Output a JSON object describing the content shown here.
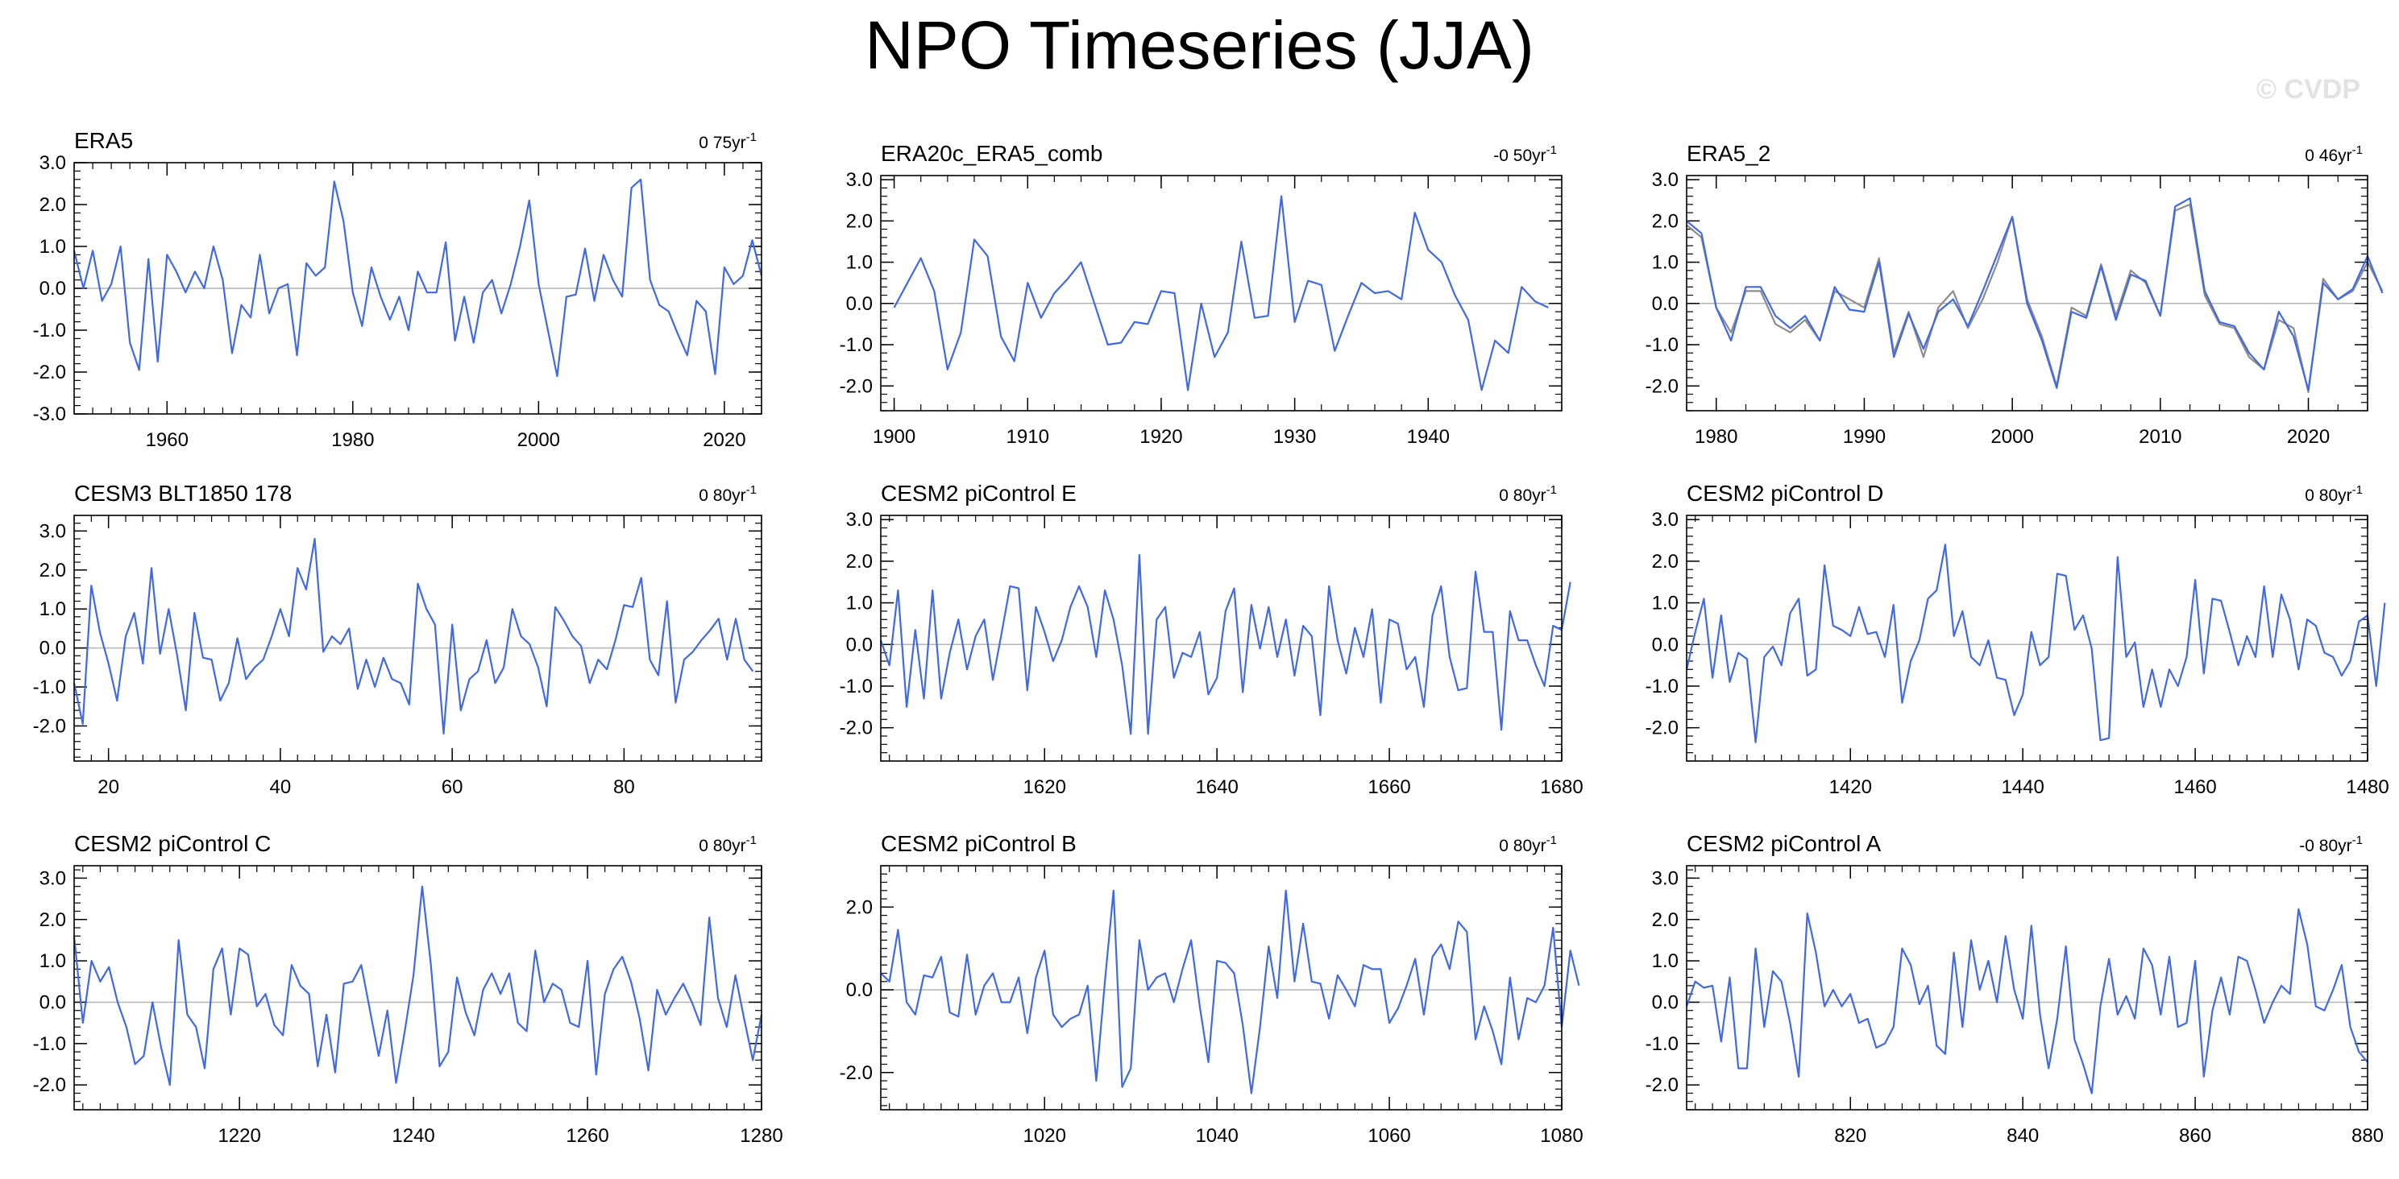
{
  "title": "NPO Timeseries (JJA)",
  "watermark": "© CVDP",
  "colors": {
    "primary": "#4169e1",
    "secondary": "#8c8c8c",
    "zero_line": "#b4b4b4",
    "axis": "#000000"
  },
  "chart_data": [
    {
      "type": "line",
      "title": "ERA5",
      "trend": "0 75yr",
      "xlim": [
        1950,
        2024
      ],
      "ylim": [
        -3,
        3
      ],
      "xticks": [
        1960,
        1980,
        2000,
        2020
      ],
      "yticks": [
        -3,
        -2,
        -1,
        0,
        1,
        2,
        3
      ],
      "x_start": 1950,
      "series": [
        {
          "values": [
            0.9,
            0.0,
            0.9,
            -0.3,
            0.1,
            1.0,
            -1.3,
            -1.95,
            0.7,
            -1.75,
            0.8,
            0.4,
            -0.1,
            0.4,
            0.0,
            1.0,
            0.2,
            -1.55,
            -0.4,
            -0.7,
            0.8,
            -0.6,
            0.0,
            0.1,
            -1.6,
            0.6,
            0.3,
            0.5,
            2.55,
            1.6,
            -0.1,
            -0.9,
            0.5,
            -0.2,
            -0.75,
            -0.2,
            -1.0,
            0.4,
            -0.1,
            -0.1,
            1.1,
            -1.25,
            -0.2,
            -1.3,
            -0.1,
            0.2,
            -0.6,
            0.1,
            1.0,
            2.1,
            0.1,
            -1.0,
            -2.1,
            -0.2,
            -0.15,
            0.95,
            -0.3,
            0.8,
            0.2,
            -0.2,
            2.4,
            2.6,
            0.2,
            -0.4,
            -0.55,
            -1.1,
            -1.6,
            -0.3,
            -0.55,
            -2.05,
            0.5,
            0.1,
            0.3,
            1.15,
            0.3
          ]
        }
      ]
    },
    {
      "type": "line",
      "title": "ERA20c_ERA5_comb",
      "trend": "-0 50yr",
      "xlim": [
        1899,
        1950
      ],
      "ylim": [
        -2.6,
        3.1
      ],
      "xticks": [
        1900,
        1910,
        1920,
        1930,
        1940
      ],
      "yticks": [
        -2,
        -1,
        0,
        1,
        2,
        3
      ],
      "x_start": 1900,
      "series": [
        {
          "values": [
            -0.1,
            0.5,
            1.1,
            0.3,
            -1.6,
            -0.7,
            1.55,
            1.15,
            -0.8,
            -1.4,
            0.5,
            -0.35,
            0.25,
            0.6,
            1.0,
            0.0,
            -1.0,
            -0.95,
            -0.45,
            -0.5,
            0.3,
            0.25,
            -2.1,
            0.0,
            -1.3,
            -0.7,
            1.5,
            -0.35,
            -0.3,
            2.6,
            -0.45,
            0.55,
            0.45,
            -1.15,
            -0.3,
            0.5,
            0.25,
            0.3,
            0.1,
            2.2,
            1.3,
            1.0,
            0.2,
            -0.4,
            -2.1,
            -0.9,
            -1.2,
            0.4,
            0.05,
            -0.1
          ]
        }
      ]
    },
    {
      "type": "line",
      "title": "ERA5_2",
      "trend": "0 46yr",
      "xlim": [
        1978,
        2024
      ],
      "ylim": [
        -2.6,
        3.1
      ],
      "xticks": [
        1980,
        1990,
        2000,
        2010,
        2020
      ],
      "yticks": [
        -2,
        -1,
        0,
        1,
        2,
        3
      ],
      "x_start": 1978,
      "series": [
        {
          "values": [
            2.0,
            1.7,
            -0.1,
            -0.9,
            0.4,
            0.4,
            -0.3,
            -0.6,
            -0.3,
            -0.9,
            0.4,
            -0.15,
            -0.2,
            1.0,
            -1.3,
            -0.25,
            -1.1,
            -0.2,
            0.1,
            -0.55,
            0.3,
            1.2,
            2.1,
            0.0,
            -0.9,
            -2.05,
            -0.2,
            -0.35,
            0.9,
            -0.4,
            0.7,
            0.55,
            -0.3,
            2.35,
            2.55,
            0.3,
            -0.45,
            -0.55,
            -1.2,
            -1.6,
            -0.2,
            -0.8,
            -2.1,
            0.5,
            0.1,
            0.35,
            1.15,
            0.25
          ]
        },
        {
          "values": [
            1.9,
            1.6,
            -0.1,
            -0.7,
            0.3,
            0.3,
            -0.5,
            -0.7,
            -0.4,
            -0.9,
            0.3,
            0.1,
            -0.1,
            1.1,
            -1.2,
            -0.2,
            -1.3,
            -0.1,
            0.3,
            -0.6,
            0.1,
            1.0,
            2.1,
            0.1,
            -0.8,
            -2.0,
            -0.1,
            -0.3,
            0.95,
            -0.3,
            0.8,
            0.5,
            -0.3,
            2.25,
            2.4,
            0.2,
            -0.5,
            -0.6,
            -1.3,
            -1.6,
            -0.4,
            -0.6,
            -2.15,
            0.6,
            0.1,
            0.3,
            1.0,
            0.3
          ]
        }
      ]
    },
    {
      "type": "line",
      "title": "CESM3 BLT1850 178",
      "trend": "0 80yr",
      "xlim": [
        16,
        96
      ],
      "ylim": [
        -2.9,
        3.4
      ],
      "xticks": [
        20,
        40,
        60,
        80
      ],
      "yticks": [
        -2,
        -1,
        0,
        1,
        2,
        3
      ],
      "x_start": 16,
      "series": [
        {
          "values": [
            -0.9,
            -1.95,
            1.6,
            0.4,
            -0.4,
            -1.35,
            0.3,
            0.9,
            -0.4,
            2.05,
            -0.15,
            1.0,
            -0.2,
            -1.6,
            0.9,
            -0.25,
            -0.3,
            -1.35,
            -0.9,
            0.25,
            -0.8,
            -0.5,
            -0.3,
            0.3,
            1.0,
            0.3,
            2.05,
            1.5,
            2.8,
            -0.1,
            0.3,
            0.1,
            0.5,
            -1.05,
            -0.3,
            -1.0,
            -0.25,
            -0.8,
            -0.9,
            -1.45,
            1.65,
            1.0,
            0.6,
            -2.2,
            0.6,
            -1.6,
            -0.8,
            -0.6,
            0.2,
            -0.9,
            -0.5,
            1.0,
            0.3,
            0.1,
            -0.5,
            -1.5,
            1.05,
            0.7,
            0.3,
            0.05,
            -0.9,
            -0.3,
            -0.55,
            0.2,
            1.1,
            1.05,
            1.8,
            -0.3,
            -0.7,
            1.2,
            -1.4,
            -0.3,
            -0.1,
            0.2,
            0.45,
            0.75,
            -0.3,
            0.75,
            -0.3,
            -0.6
          ]
        }
      ]
    },
    {
      "type": "line",
      "title": "CESM2 piControl E",
      "trend": "0 80yr",
      "xlim": [
        1601,
        1680
      ],
      "ylim": [
        -2.8,
        3.1
      ],
      "xticks": [
        1620,
        1640,
        1660,
        1680
      ],
      "yticks": [
        -2,
        -1,
        0,
        1,
        2,
        3
      ],
      "x_start": 1601,
      "series": [
        {
          "values": [
            0.1,
            -0.5,
            1.3,
            -1.5,
            0.35,
            -1.3,
            1.3,
            -1.3,
            -0.2,
            0.6,
            -0.6,
            0.2,
            0.6,
            -0.85,
            0.25,
            1.4,
            1.35,
            -1.1,
            0.9,
            0.3,
            -0.4,
            0.1,
            0.9,
            1.4,
            0.9,
            -0.3,
            1.3,
            0.6,
            -0.5,
            -2.15,
            2.15,
            -2.15,
            0.6,
            0.9,
            -0.8,
            -0.2,
            -0.3,
            0.3,
            -1.2,
            -0.8,
            0.8,
            1.35,
            -1.15,
            0.95,
            -0.1,
            0.9,
            -0.3,
            0.6,
            -0.75,
            0.45,
            0.2,
            -1.7,
            1.4,
            0.1,
            -0.7,
            0.4,
            -0.3,
            0.85,
            -1.4,
            0.6,
            0.5,
            -0.6,
            -0.3,
            -1.5,
            0.7,
            1.4,
            -0.3,
            -1.1,
            -1.05,
            1.75,
            0.3,
            0.3,
            -2.05,
            0.8,
            0.1,
            0.1,
            -0.5,
            -1.0,
            0.45,
            0.35,
            1.5
          ]
        }
      ]
    },
    {
      "type": "line",
      "title": "CESM2 piControl D",
      "trend": "0 80yr",
      "xlim": [
        1401,
        1480
      ],
      "ylim": [
        -2.8,
        3.1
      ],
      "xticks": [
        1420,
        1440,
        1460,
        1480
      ],
      "yticks": [
        -2,
        -1,
        0,
        1,
        2,
        3
      ],
      "x_start": 1401,
      "series": [
        {
          "values": [
            -0.6,
            0.3,
            1.1,
            -0.8,
            0.7,
            -0.9,
            -0.2,
            -0.35,
            -2.35,
            -0.3,
            -0.05,
            -0.5,
            0.75,
            1.1,
            -0.75,
            -0.6,
            1.9,
            0.45,
            0.35,
            0.2,
            0.9,
            0.25,
            0.3,
            -0.3,
            0.95,
            -1.4,
            -0.4,
            0.1,
            1.1,
            1.3,
            2.4,
            0.2,
            0.8,
            -0.3,
            -0.5,
            0.1,
            -0.8,
            -0.85,
            -1.7,
            -1.2,
            0.3,
            -0.5,
            -0.3,
            1.7,
            1.65,
            0.35,
            0.7,
            -0.1,
            -2.3,
            -2.25,
            2.1,
            -0.3,
            0.05,
            -1.5,
            -0.6,
            -1.5,
            -0.6,
            -1.0,
            -0.3,
            1.55,
            -0.7,
            1.1,
            1.05,
            0.3,
            -0.5,
            0.2,
            -0.3,
            1.4,
            -0.3,
            1.2,
            0.6,
            -0.6,
            0.6,
            0.45,
            -0.2,
            -0.3,
            -0.75,
            -0.4,
            0.55,
            0.7,
            -1.0,
            1.0
          ]
        }
      ]
    },
    {
      "type": "line",
      "title": "CESM2 piControl C",
      "trend": "0 80yr",
      "xlim": [
        1201,
        1280
      ],
      "ylim": [
        -2.6,
        3.3
      ],
      "xticks": [
        1220,
        1240,
        1260,
        1280
      ],
      "yticks": [
        -2,
        -1,
        0,
        1,
        2,
        3
      ],
      "x_start": 1201,
      "series": [
        {
          "values": [
            1.6,
            -0.5,
            1.0,
            0.5,
            0.85,
            0.0,
            -0.6,
            -1.5,
            -1.3,
            0.0,
            -1.1,
            -2.0,
            1.5,
            -0.3,
            -0.6,
            -1.6,
            0.8,
            1.3,
            -0.3,
            1.3,
            1.15,
            -0.1,
            0.2,
            -0.55,
            -0.8,
            0.9,
            0.4,
            0.2,
            -1.55,
            -0.3,
            -1.7,
            0.45,
            0.5,
            0.9,
            -0.2,
            -1.3,
            -0.2,
            -1.95,
            -0.7,
            0.65,
            2.8,
            0.9,
            -1.55,
            -1.2,
            0.6,
            -0.25,
            -0.8,
            0.3,
            0.7,
            0.2,
            0.7,
            -0.5,
            -0.7,
            1.25,
            0.0,
            0.45,
            0.3,
            -0.5,
            -0.6,
            1.0,
            -1.75,
            0.2,
            0.8,
            1.1,
            0.5,
            -0.4,
            -1.65,
            0.3,
            -0.3,
            0.1,
            0.45,
            0.0,
            -0.55,
            2.05,
            0.1,
            -0.6,
            0.65,
            -0.4,
            -1.4,
            -0.3
          ]
        }
      ]
    },
    {
      "type": "line",
      "title": "CESM2 piControl B",
      "trend": "0 80yr",
      "xlim": [
        1001,
        1080
      ],
      "ylim": [
        -2.9,
        3.0
      ],
      "xticks": [
        1020,
        1040,
        1060,
        1080
      ],
      "yticks": [
        -2,
        0,
        2
      ],
      "x_start": 1001,
      "series": [
        {
          "values": [
            0.4,
            0.2,
            1.45,
            -0.3,
            -0.6,
            0.35,
            0.3,
            0.8,
            -0.55,
            -0.65,
            0.85,
            -0.6,
            0.1,
            0.4,
            -0.3,
            -0.3,
            0.3,
            -1.05,
            0.3,
            0.95,
            -0.6,
            -0.9,
            -0.7,
            -0.6,
            0.1,
            -2.2,
            0.2,
            2.4,
            -2.35,
            -1.9,
            1.2,
            0.0,
            0.3,
            0.4,
            -0.3,
            0.5,
            1.2,
            -0.4,
            -1.75,
            0.7,
            0.65,
            0.4,
            -0.85,
            -2.5,
            -0.9,
            1.05,
            -0.2,
            2.4,
            0.2,
            1.6,
            0.2,
            0.15,
            -0.7,
            0.35,
            0.0,
            -0.4,
            0.6,
            0.5,
            0.5,
            -0.8,
            -0.45,
            0.1,
            0.75,
            -0.6,
            0.8,
            1.1,
            0.5,
            1.65,
            1.4,
            -1.2,
            -0.4,
            -1.0,
            -1.8,
            0.3,
            -1.2,
            -0.2,
            -0.3,
            0.1,
            1.5,
            -0.9,
            0.95,
            0.1
          ]
        }
      ]
    },
    {
      "type": "line",
      "title": "CESM2 piControl A",
      "trend": "-0 80yr",
      "xlim": [
        801,
        880
      ],
      "ylim": [
        -2.6,
        3.3
      ],
      "xticks": [
        820,
        840,
        860,
        880
      ],
      "yticks": [
        -2,
        -1,
        0,
        1,
        2,
        3
      ],
      "x_start": 801,
      "series": [
        {
          "values": [
            -0.1,
            0.5,
            0.35,
            0.4,
            -0.95,
            0.6,
            -1.6,
            -1.6,
            1.3,
            -0.6,
            0.75,
            0.5,
            -0.5,
            -1.8,
            2.15,
            1.2,
            -0.1,
            0.3,
            -0.1,
            0.2,
            -0.5,
            -0.4,
            -1.1,
            -1.0,
            -0.6,
            1.3,
            0.9,
            -0.05,
            0.4,
            -1.05,
            -1.25,
            1.2,
            -0.6,
            1.5,
            0.3,
            1.0,
            0.0,
            1.6,
            0.3,
            -0.4,
            1.85,
            -0.3,
            -1.6,
            -0.4,
            1.35,
            -0.9,
            -1.5,
            -2.2,
            -0.1,
            1.05,
            -0.3,
            0.15,
            -0.4,
            1.3,
            0.9,
            -0.3,
            1.1,
            -0.6,
            -0.5,
            1.0,
            -1.8,
            -0.2,
            0.6,
            -0.3,
            1.1,
            1.0,
            0.3,
            -0.5,
            0.0,
            0.4,
            0.2,
            2.25,
            1.4,
            -0.1,
            -0.2,
            0.3,
            0.9,
            -0.6,
            -1.2,
            -1.45
          ]
        }
      ]
    }
  ]
}
